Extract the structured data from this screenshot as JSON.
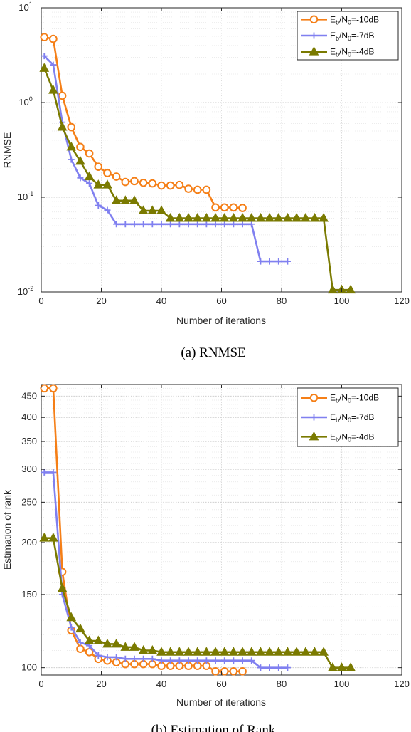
{
  "figure": {
    "caption_a": "(a) RNMSE",
    "caption_b": "(b) Estimation of Rank"
  },
  "chart_data": [
    {
      "type": "line",
      "yscale": "log",
      "xlabel": "Number of iterations",
      "ylabel": "RNMSE",
      "xlim": [
        0,
        120
      ],
      "ylim": [
        0.01,
        10
      ],
      "xticks": [
        "0",
        "20",
        "40",
        "60",
        "80",
        "100",
        "120"
      ],
      "yticks": [
        {
          "base": "10",
          "exp": "-2",
          "value": 0.01
        },
        {
          "base": "10",
          "exp": "-1",
          "value": 0.1
        },
        {
          "base": "10",
          "exp": "0",
          "value": 1
        },
        {
          "base": "10",
          "exp": "1",
          "value": 10
        }
      ],
      "grid": true,
      "legend_position": "top-right",
      "series": [
        {
          "name": "Eb/N0=-10dB",
          "legend": {
            "E": "E",
            "sub1": "b",
            "mid": "/N",
            "sub2": "0",
            "tail": "=-10dB"
          },
          "color": "#f57f17",
          "marker": "circle",
          "x": [
            1,
            4,
            7,
            10,
            13,
            16,
            19,
            22,
            25,
            28,
            31,
            34,
            37,
            40,
            43,
            46,
            49,
            52,
            55,
            58,
            61,
            64,
            67
          ],
          "y": [
            4.9,
            4.7,
            1.18,
            0.55,
            0.34,
            0.29,
            0.21,
            0.18,
            0.165,
            0.145,
            0.148,
            0.142,
            0.14,
            0.133,
            0.133,
            0.135,
            0.123,
            0.12,
            0.12,
            0.078,
            0.078,
            0.078,
            0.077
          ]
        },
        {
          "name": "Eb/N0=-7dB",
          "legend": {
            "E": "E",
            "sub1": "b",
            "mid": "/N",
            "sub2": "0",
            "tail": "=-7dB"
          },
          "color": "#8080f0",
          "marker": "plus",
          "x": [
            1,
            4,
            7,
            10,
            13,
            16,
            19,
            22,
            25,
            28,
            31,
            34,
            37,
            40,
            43,
            46,
            49,
            52,
            55,
            58,
            61,
            64,
            67,
            70,
            73,
            76,
            79,
            82
          ],
          "y": [
            3.1,
            2.5,
            0.62,
            0.25,
            0.16,
            0.14,
            0.082,
            0.073,
            0.052,
            0.052,
            0.052,
            0.052,
            0.052,
            0.052,
            0.052,
            0.052,
            0.052,
            0.052,
            0.052,
            0.052,
            0.052,
            0.052,
            0.052,
            0.052,
            0.021,
            0.021,
            0.021,
            0.021
          ]
        },
        {
          "name": "Eb/N0=-4dB",
          "legend": {
            "E": "E",
            "sub1": "b",
            "mid": "/N",
            "sub2": "0",
            "tail": "=-4dB"
          },
          "color": "#7a7a00",
          "marker": "triangle",
          "x": [
            1,
            4,
            7,
            10,
            13,
            16,
            19,
            22,
            25,
            28,
            31,
            34,
            37,
            40,
            43,
            46,
            49,
            52,
            55,
            58,
            61,
            64,
            67,
            70,
            73,
            76,
            79,
            82,
            85,
            88,
            91,
            94,
            97,
            100,
            103
          ],
          "y": [
            2.3,
            1.35,
            0.55,
            0.34,
            0.24,
            0.165,
            0.135,
            0.135,
            0.092,
            0.092,
            0.092,
            0.072,
            0.072,
            0.072,
            0.06,
            0.06,
            0.06,
            0.06,
            0.06,
            0.06,
            0.06,
            0.06,
            0.06,
            0.06,
            0.06,
            0.06,
            0.06,
            0.06,
            0.06,
            0.06,
            0.06,
            0.06,
            0.0105,
            0.0105,
            0.0105
          ]
        }
      ]
    },
    {
      "type": "line",
      "yscale": "log",
      "xlabel": "Number of iterations",
      "ylabel": "Estimation of rank",
      "xlim": [
        0,
        120
      ],
      "ylim": [
        96,
        480
      ],
      "xticks": [
        "0",
        "20",
        "40",
        "60",
        "80",
        "100",
        "120"
      ],
      "yticks": [
        "100",
        "150",
        "200",
        "250",
        "300",
        "350",
        "400",
        "450"
      ],
      "grid": true,
      "legend_position": "top-right",
      "series": [
        {
          "name": "Eb/N0=-10dB",
          "legend": {
            "E": "E",
            "sub1": "b",
            "mid": "/N",
            "sub2": "0",
            "tail": "=-10dB"
          },
          "color": "#f57f17",
          "marker": "circle",
          "x": [
            1,
            4,
            7,
            10,
            13,
            16,
            19,
            22,
            25,
            28,
            31,
            34,
            37,
            40,
            43,
            46,
            49,
            52,
            55,
            58,
            61,
            64,
            67
          ],
          "y": [
            470,
            470,
            170,
            123,
            111,
            109,
            105,
            104,
            103,
            102,
            102,
            102,
            102,
            101,
            101,
            101,
            101,
            101,
            101,
            98,
            98,
            98,
            98
          ]
        },
        {
          "name": "Eb/N0=-7dB",
          "legend": {
            "E": "E",
            "sub1": "b",
            "mid": "/N",
            "sub2": "0",
            "tail": "=-7dB"
          },
          "color": "#8080f0",
          "marker": "plus",
          "x": [
            1,
            4,
            7,
            10,
            13,
            16,
            19,
            22,
            25,
            28,
            31,
            34,
            37,
            40,
            43,
            46,
            49,
            52,
            55,
            58,
            61,
            64,
            67,
            70,
            73,
            76,
            79,
            82
          ],
          "y": [
            295,
            295,
            150,
            125,
            115,
            113,
            107,
            106,
            106,
            105,
            105,
            105,
            105,
            104,
            104,
            104,
            104,
            104,
            104,
            104,
            104,
            104,
            104,
            104,
            100,
            100,
            100,
            100
          ]
        },
        {
          "name": "Eb/N0=-4dB",
          "legend": {
            "E": "E",
            "sub1": "b",
            "mid": "/N",
            "sub2": "0",
            "tail": "=-4dB"
          },
          "color": "#7a7a00",
          "marker": "triangle",
          "x": [
            1,
            4,
            7,
            10,
            13,
            16,
            19,
            22,
            25,
            28,
            31,
            34,
            37,
            40,
            43,
            46,
            49,
            52,
            55,
            58,
            61,
            64,
            67,
            70,
            73,
            76,
            79,
            82,
            85,
            88,
            91,
            94,
            97,
            100,
            103
          ],
          "y": [
            205,
            205,
            155,
            132,
            124,
            116,
            116,
            114,
            114,
            112,
            112,
            110,
            110,
            109,
            109,
            109,
            109,
            109,
            109,
            109,
            109,
            109,
            109,
            109,
            109,
            109,
            109,
            109,
            109,
            109,
            109,
            109,
            100,
            100,
            100
          ]
        }
      ]
    }
  ]
}
